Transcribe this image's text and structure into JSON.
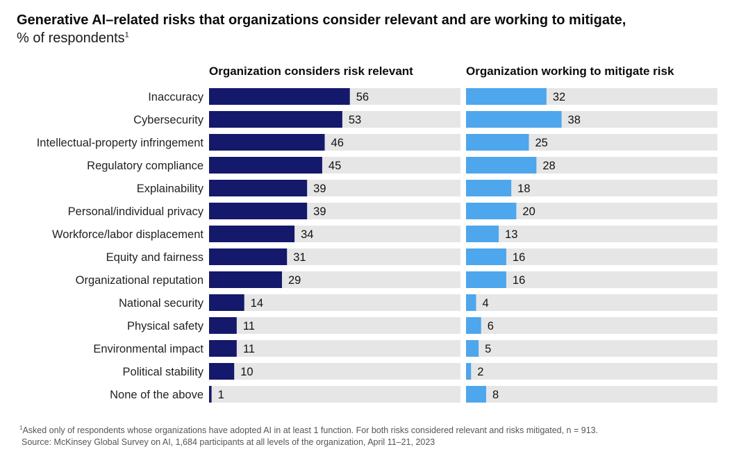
{
  "title": "Generative AI–related risks that organizations consider relevant and are working to mitigate,",
  "subtitle": "% of respondents",
  "subtitle_sup": "1",
  "colors": {
    "relevant": "#14196b",
    "mitigate": "#4ea6ec",
    "track": "#e6e6e6"
  },
  "chart_data": {
    "type": "bar",
    "orientation": "horizontal",
    "categories": [
      "Inaccuracy",
      "Cybersecurity",
      "Intellectual-property infringement",
      "Regulatory compliance",
      "Explainability",
      "Personal/individual privacy",
      "Workforce/labor displacement",
      "Equity and fairness",
      "Organizational reputation",
      "National security",
      "Physical safety",
      "Environmental impact",
      "Political stability",
      "None of the above"
    ],
    "series": [
      {
        "name": "Organization considers risk relevant",
        "values": [
          56,
          53,
          46,
          45,
          39,
          39,
          34,
          31,
          29,
          14,
          11,
          11,
          10,
          1
        ]
      },
      {
        "name": "Organization working to mitigate risk",
        "values": [
          32,
          38,
          25,
          28,
          18,
          20,
          13,
          16,
          16,
          4,
          6,
          5,
          2,
          8
        ]
      }
    ],
    "xlim": [
      0,
      100
    ]
  },
  "footnote": {
    "line1_sup": "1",
    "line1": "Asked only of respondents whose organizations have adopted AI in at least 1 function. For both risks considered relevant and risks mitigated, n = 913.",
    "line2": "Source: McKinsey Global Survey on AI, 1,684 participants at all levels of the organization, April 11–21, 2023"
  }
}
